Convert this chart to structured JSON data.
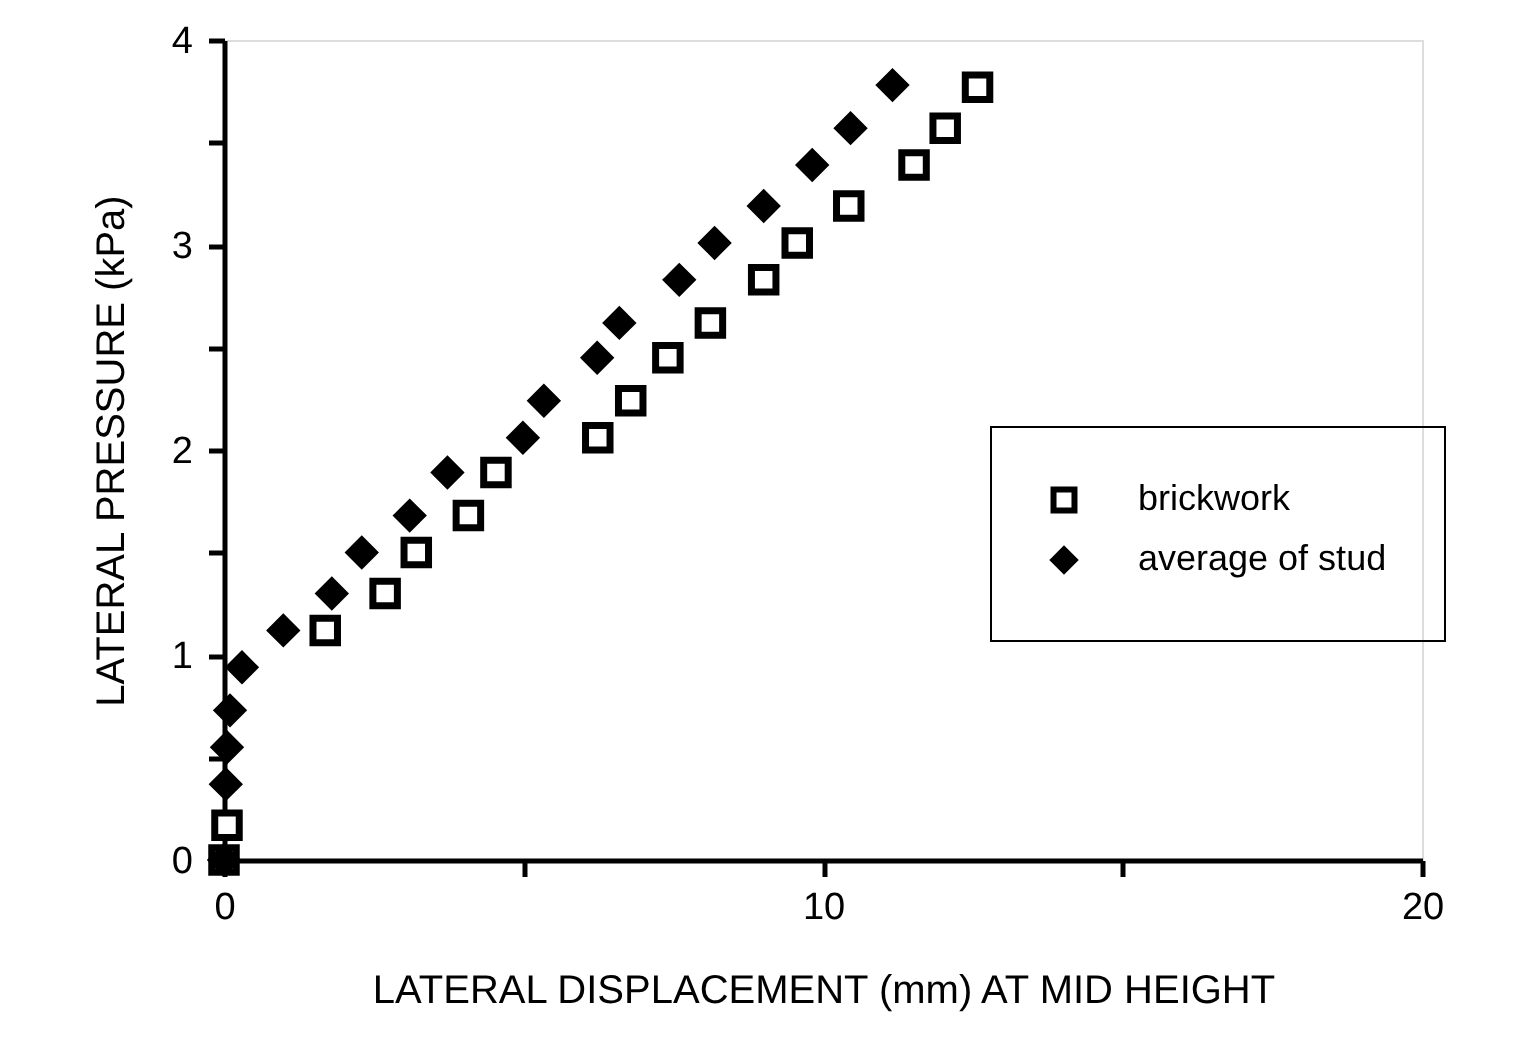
{
  "chart_data": {
    "type": "scatter",
    "xlabel": "LATERAL DISPLACEMENT (mm) AT MID HEIGHT",
    "ylabel": "LATERAL PRESSURE (kPa)",
    "xlim": [
      0,
      20
    ],
    "xticks": [
      0,
      {
        "value": 5,
        "label": null
      },
      10,
      {
        "value": 15,
        "label": null
      },
      20
    ],
    "ylim": [
      0,
      4
    ],
    "yticks": [
      0,
      {
        "value": 0.5,
        "label": null
      },
      1,
      {
        "value": 1.5,
        "label": null
      },
      2,
      {
        "value": 2.5,
        "label": null
      },
      3,
      {
        "value": 3.5,
        "label": null
      },
      4
    ],
    "grid": false,
    "legend": "right",
    "series": [
      {
        "name": "brickwork",
        "color": "#000000",
        "marker": "square",
        "x": [
          0,
          0.05,
          null,
          null,
          null,
          null,
          1.69,
          2.69,
          3.21,
          4.08,
          4.54,
          6.24,
          6.79,
          7.41,
          8.12,
          9.01,
          9.57,
          10.43,
          11.52,
          12.04,
          12.58
        ],
        "values": [
          0,
          0.17,
          null,
          null,
          null,
          null,
          1.12,
          1.3,
          1.5,
          1.68,
          1.89,
          2.06,
          2.24,
          2.45,
          2.62,
          2.83,
          3.01,
          3.19,
          3.39,
          3.57,
          3.77
        ]
      },
      {
        "name": "average of stud",
        "color": "#000000",
        "marker": "diamond",
        "x": [
          0,
          null,
          0.03,
          0.05,
          0.1,
          0.3,
          0.99,
          1.8,
          2.3,
          3.1,
          3.73,
          4.99,
          5.34,
          6.23,
          6.6,
          7.6,
          8.19,
          9.01,
          9.82,
          10.46,
          11.16
        ],
        "values": [
          0,
          null,
          0.37,
          0.55,
          0.73,
          0.94,
          1.12,
          1.3,
          1.5,
          1.68,
          1.89,
          2.06,
          2.24,
          2.45,
          2.62,
          2.83,
          3.01,
          3.19,
          3.39,
          3.57,
          3.78
        ]
      }
    ]
  }
}
